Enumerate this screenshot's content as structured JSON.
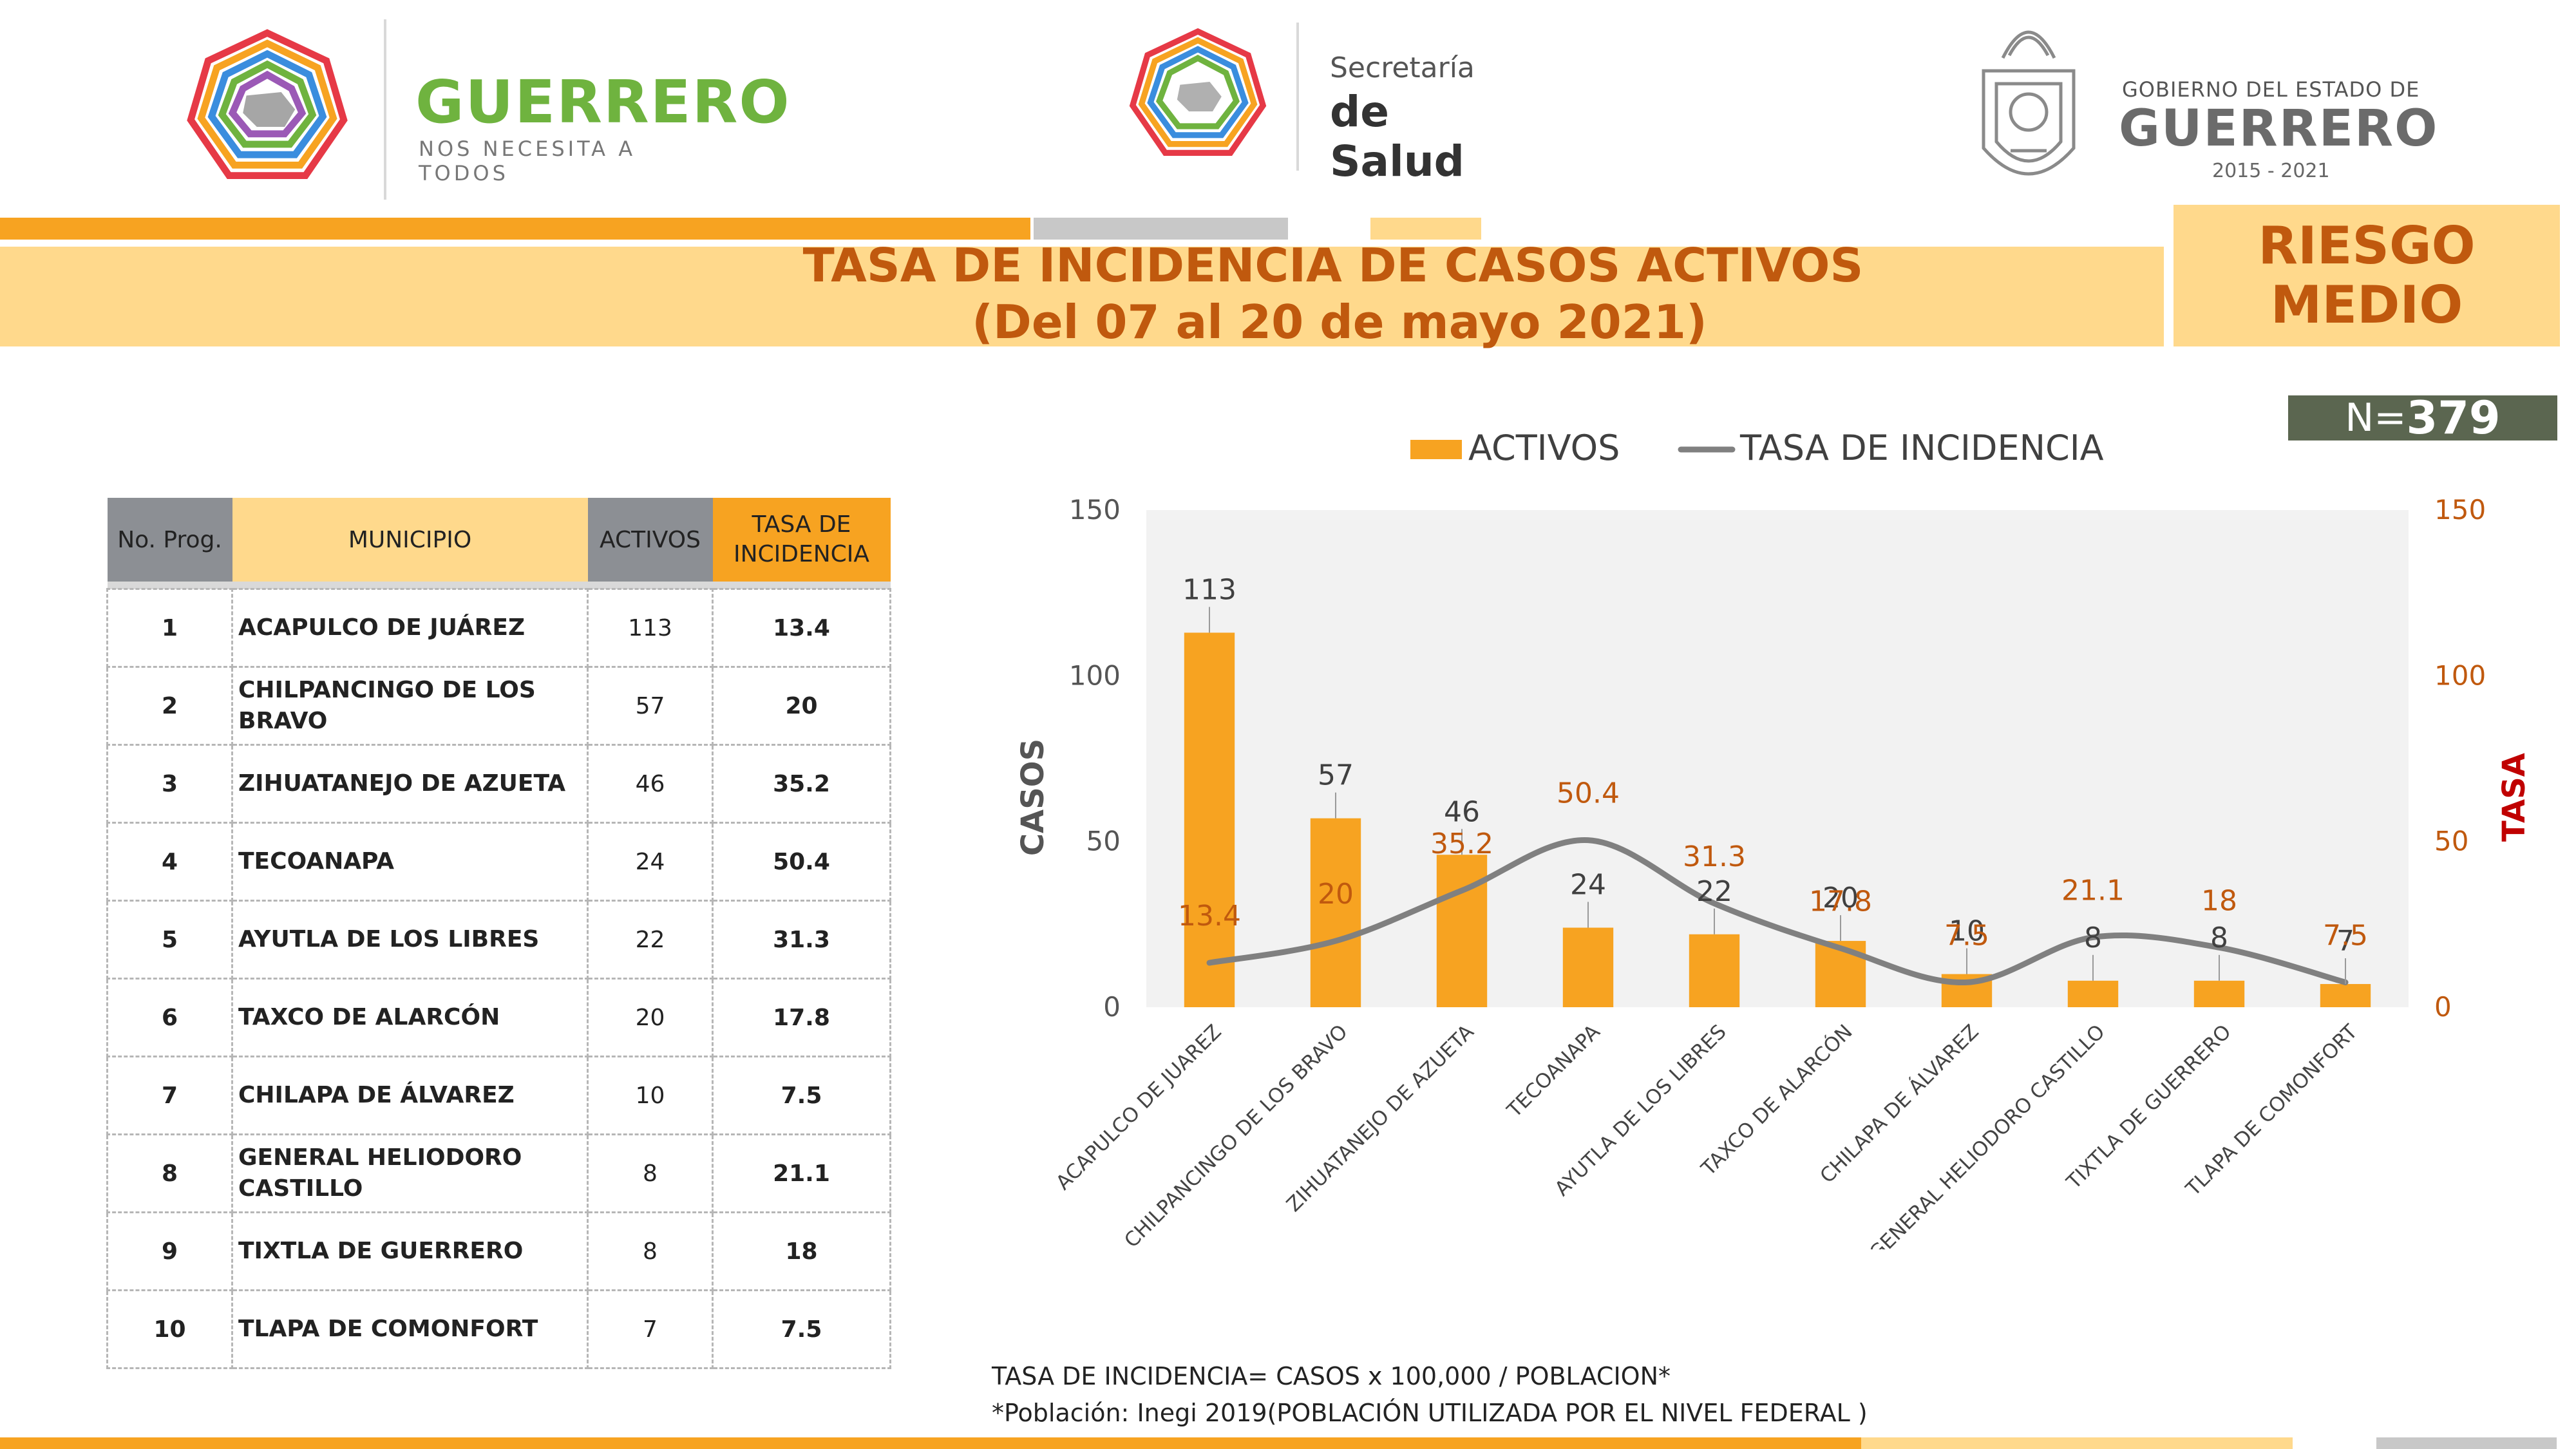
{
  "header": {
    "logo_left_title": "GUERRERO",
    "logo_left_subtitle": "NOS NECESITA A TODOS",
    "logo_center_line1": "Secretaría",
    "logo_center_line2": "de Salud",
    "logo_right_line1": "GOBIERNO DEL ESTADO DE",
    "logo_right_line2": "GUERRERO",
    "logo_right_years": "2015 - 2021"
  },
  "title": {
    "line1": "TASA DE INCIDENCIA DE CASOS ACTIVOS",
    "line2": "(Del 07 al 20 de mayo 2021)"
  },
  "risk": {
    "line1": "RIESGO",
    "line2": "MEDIO"
  },
  "n_total": {
    "prefix": "N=",
    "value": "379"
  },
  "table": {
    "headers": {
      "prog": "No. Prog.",
      "municipio": "MUNICIPIO",
      "activos": "ACTIVOS",
      "tasa_line1": "TASA DE",
      "tasa_line2": "INCIDENCIA"
    },
    "rows": [
      {
        "no": "1",
        "municipio": "ACAPULCO DE JUÁREZ",
        "activos": "113",
        "tasa": "13.4"
      },
      {
        "no": "2",
        "municipio": "CHILPANCINGO DE LOS BRAVO",
        "activos": "57",
        "tasa": "20"
      },
      {
        "no": "3",
        "municipio": "ZIHUATANEJO DE AZUETA",
        "activos": "46",
        "tasa": "35.2"
      },
      {
        "no": "4",
        "municipio": "TECOANAPA",
        "activos": "24",
        "tasa": "50.4"
      },
      {
        "no": "5",
        "municipio": "AYUTLA DE LOS LIBRES",
        "activos": "22",
        "tasa": "31.3"
      },
      {
        "no": "6",
        "municipio": "TAXCO DE ALARCÓN",
        "activos": "20",
        "tasa": "17.8"
      },
      {
        "no": "7",
        "municipio": "CHILAPA DE ÁLVAREZ",
        "activos": "10",
        "tasa": "7.5"
      },
      {
        "no": "8",
        "municipio": "GENERAL HELIODORO CASTILLO",
        "activos": "8",
        "tasa": "21.1"
      },
      {
        "no": "9",
        "municipio": "TIXTLA DE GUERRERO",
        "activos": "8",
        "tasa": "18"
      },
      {
        "no": "10",
        "municipio": "TLAPA DE COMONFORT",
        "activos": "7",
        "tasa": "7.5"
      }
    ]
  },
  "chart_data": {
    "type": "bar",
    "categories": [
      "ACAPULCO DE JUAREZ",
      "CHILPANCINGO DE LOS BRAVO",
      "ZIHUATANEJO DE AZUETA",
      "TECOANAPA",
      "AYUTLA DE LOS LIBRES",
      "TAXCO DE ALARCÓN",
      "CHILAPA DE ÁLVAREZ",
      "GENERAL HELIODORO CASTILLO",
      "TIXTLA DE GUERRERO",
      "TLAPA DE COMONFORT"
    ],
    "series": [
      {
        "name": "ACTIVOS",
        "type": "bar",
        "axis": "left",
        "values": [
          113,
          57,
          46,
          24,
          22,
          20,
          10,
          8,
          8,
          7
        ],
        "color": "#f7a321"
      },
      {
        "name": "TASA DE INCIDENCIA",
        "type": "line",
        "axis": "right",
        "values": [
          13.4,
          20,
          35.2,
          50.4,
          31.3,
          17.8,
          7.5,
          21.1,
          18,
          7.5
        ],
        "color": "#808080"
      }
    ],
    "ylabel": "CASOS",
    "y2label": "TASA",
    "ylim": [
      0,
      150
    ],
    "y2lim": [
      0,
      150
    ],
    "yticks": [
      0,
      50,
      100,
      150
    ],
    "legend_position": "top",
    "grid": false,
    "bar_label_color": "#404040",
    "line_label_color": "#c0590e",
    "right_axis_color": "#c0590e",
    "plot_background": "#f2f2f2"
  },
  "footnotes": {
    "formula": "TASA DE INCIDENCIA= CASOS x 100,000 / POBLACION*",
    "source": "*Población: Inegi 2019(POBLACIÓN UTILIZADA POR EL NIVEL FEDERAL )"
  },
  "colors": {
    "orange": "#f7a321",
    "light_orange": "#ffd98c",
    "gray": "#c8c8c8",
    "dark_orange_text": "#c0590e",
    "brand_green": "#6fb33f"
  }
}
